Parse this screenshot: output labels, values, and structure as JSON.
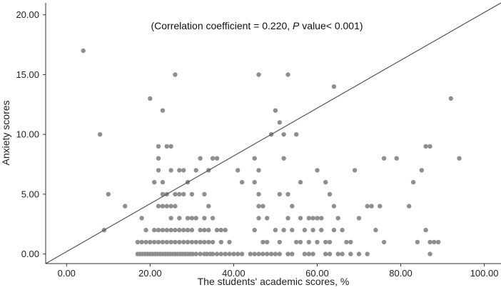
{
  "chart_data": {
    "type": "scatter",
    "title": "",
    "annotation_prefix": "(Correlation coefficient = 0.220, ",
    "annotation_italic": "P",
    "annotation_suffix": " value< 0.001)",
    "xlabel": "The students' academic scores, %",
    "ylabel": "Anxiety scores",
    "xlim": [
      -5,
      104
    ],
    "ylim": [
      -0.8,
      21
    ],
    "xticks": [
      "0.00",
      "20.00",
      "40.00",
      "60.00",
      "80.00",
      "100.00"
    ],
    "yticks": [
      "0.00",
      "5.00",
      "10.00",
      "15.00",
      "20.00"
    ],
    "grid": false,
    "colors": {
      "points": "#8f8f8f",
      "line": "#555555",
      "axes": "#333333",
      "text": "#222222"
    },
    "reference_line": {
      "x": [
        -5,
        104
      ],
      "y": [
        -0.8,
        21
      ]
    },
    "points": [
      [
        4,
        17
      ],
      [
        8,
        10
      ],
      [
        9,
        2
      ],
      [
        10,
        5
      ],
      [
        14,
        4
      ],
      [
        20,
        13
      ],
      [
        23,
        12
      ],
      [
        26,
        15
      ],
      [
        46,
        15
      ],
      [
        53,
        15
      ],
      [
        64,
        14
      ],
      [
        92,
        13
      ],
      [
        94,
        8
      ],
      [
        24,
        9
      ],
      [
        25,
        9
      ],
      [
        22,
        9
      ],
      [
        22,
        8
      ],
      [
        22,
        7
      ],
      [
        23,
        6
      ],
      [
        21,
        6
      ],
      [
        25,
        7
      ],
      [
        27,
        7
      ],
      [
        28,
        7
      ],
      [
        29,
        6
      ],
      [
        30,
        5
      ],
      [
        31,
        7
      ],
      [
        32,
        8
      ],
      [
        35,
        8
      ],
      [
        34,
        7
      ],
      [
        36,
        8
      ],
      [
        33,
        5
      ],
      [
        23,
        5
      ],
      [
        24,
        5
      ],
      [
        25,
        4
      ],
      [
        26,
        4
      ],
      [
        27,
        5
      ],
      [
        28,
        5
      ],
      [
        24,
        4
      ],
      [
        26,
        5
      ],
      [
        22,
        4
      ],
      [
        23,
        4
      ],
      [
        25,
        3
      ],
      [
        27,
        3
      ],
      [
        29,
        3
      ],
      [
        31,
        3
      ],
      [
        34,
        4
      ],
      [
        33,
        3
      ],
      [
        35,
        3
      ],
      [
        32,
        2
      ],
      [
        30,
        2
      ],
      [
        18,
        3
      ],
      [
        19,
        2
      ],
      [
        21,
        2
      ],
      [
        22,
        2
      ],
      [
        23,
        2
      ],
      [
        24,
        2
      ],
      [
        25,
        2
      ],
      [
        26,
        2
      ],
      [
        27,
        2
      ],
      [
        28,
        2
      ],
      [
        29,
        2
      ],
      [
        30,
        3
      ],
      [
        33,
        2
      ],
      [
        34,
        2
      ],
      [
        36,
        2
      ],
      [
        37,
        2
      ],
      [
        38,
        2
      ],
      [
        17,
        1
      ],
      [
        18,
        1
      ],
      [
        19,
        1
      ],
      [
        20,
        1
      ],
      [
        21,
        1
      ],
      [
        22,
        1
      ],
      [
        23,
        1
      ],
      [
        24,
        1
      ],
      [
        25,
        1
      ],
      [
        26,
        1
      ],
      [
        27,
        1
      ],
      [
        28,
        1
      ],
      [
        29,
        1
      ],
      [
        30,
        1
      ],
      [
        31,
        1
      ],
      [
        32,
        1
      ],
      [
        33,
        1
      ],
      [
        34,
        1
      ],
      [
        35,
        1
      ],
      [
        37,
        1
      ],
      [
        39,
        1
      ],
      [
        17,
        0
      ],
      [
        17.6,
        0
      ],
      [
        18.2,
        0
      ],
      [
        18.8,
        0
      ],
      [
        19.4,
        0
      ],
      [
        20,
        0
      ],
      [
        20.6,
        0
      ],
      [
        21.2,
        0
      ],
      [
        21.8,
        0
      ],
      [
        22.4,
        0
      ],
      [
        23,
        0
      ],
      [
        23.6,
        0
      ],
      [
        24.2,
        0
      ],
      [
        24.8,
        0
      ],
      [
        25.4,
        0
      ],
      [
        26,
        0
      ],
      [
        26.6,
        0
      ],
      [
        27.2,
        0
      ],
      [
        27.8,
        0
      ],
      [
        28.4,
        0
      ],
      [
        29,
        0
      ],
      [
        29.6,
        0
      ],
      [
        30.2,
        0
      ],
      [
        31,
        0
      ],
      [
        32,
        0
      ],
      [
        33,
        0
      ],
      [
        33.6,
        0
      ],
      [
        34.4,
        0
      ],
      [
        35,
        0
      ],
      [
        36,
        0
      ],
      [
        37,
        0
      ],
      [
        38,
        0
      ],
      [
        39,
        0
      ],
      [
        40,
        0
      ],
      [
        41,
        0
      ],
      [
        42,
        0
      ],
      [
        44,
        0
      ],
      [
        45,
        0
      ],
      [
        46,
        0
      ],
      [
        47,
        0
      ],
      [
        48,
        0
      ],
      [
        49,
        0
      ],
      [
        50,
        0
      ],
      [
        51,
        0
      ],
      [
        53,
        0
      ],
      [
        54,
        0
      ],
      [
        57,
        0
      ],
      [
        58,
        0
      ],
      [
        59,
        0
      ],
      [
        62,
        0
      ],
      [
        63,
        0
      ],
      [
        65,
        0
      ],
      [
        66,
        0
      ],
      [
        68,
        0
      ],
      [
        70,
        0
      ],
      [
        72,
        0
      ],
      [
        87,
        0
      ],
      [
        41,
        7
      ],
      [
        42,
        6
      ],
      [
        45,
        8
      ],
      [
        46,
        7
      ],
      [
        45,
        6
      ],
      [
        46,
        5
      ],
      [
        47,
        4
      ],
      [
        49,
        10
      ],
      [
        50,
        12
      ],
      [
        51,
        11
      ],
      [
        52,
        10
      ],
      [
        55,
        10
      ],
      [
        51,
        5
      ],
      [
        53,
        5
      ],
      [
        52,
        8
      ],
      [
        54,
        4
      ],
      [
        56,
        6
      ],
      [
        60,
        7
      ],
      [
        62,
        6
      ],
      [
        63,
        5
      ],
      [
        64,
        4
      ],
      [
        65,
        3
      ],
      [
        61,
        3
      ],
      [
        60,
        3
      ],
      [
        66,
        2
      ],
      [
        69,
        7
      ],
      [
        70,
        3
      ],
      [
        72,
        4
      ],
      [
        73,
        4
      ],
      [
        74,
        2
      ],
      [
        75,
        4
      ],
      [
        76,
        8
      ],
      [
        79,
        8
      ],
      [
        82,
        4
      ],
      [
        83,
        6
      ],
      [
        85,
        7
      ],
      [
        86,
        9
      ],
      [
        87,
        9
      ],
      [
        86,
        2
      ],
      [
        89,
        1
      ],
      [
        88,
        1
      ],
      [
        87,
        1
      ],
      [
        76,
        1
      ],
      [
        84,
        1
      ],
      [
        45,
        2
      ],
      [
        46,
        3
      ],
      [
        47,
        1
      ],
      [
        48,
        1
      ],
      [
        50,
        2
      ],
      [
        51,
        1
      ],
      [
        52,
        2
      ],
      [
        54,
        2
      ],
      [
        55,
        1
      ],
      [
        56,
        1
      ],
      [
        57,
        2
      ],
      [
        58,
        1
      ],
      [
        59,
        2
      ],
      [
        60,
        1
      ],
      [
        61,
        2
      ],
      [
        62,
        1
      ],
      [
        63,
        1
      ],
      [
        64,
        2
      ],
      [
        67,
        1
      ],
      [
        68,
        1
      ],
      [
        56,
        3
      ],
      [
        58,
        3
      ],
      [
        59,
        3
      ],
      [
        46,
        4
      ],
      [
        48,
        3
      ],
      [
        53,
        3
      ]
    ]
  }
}
